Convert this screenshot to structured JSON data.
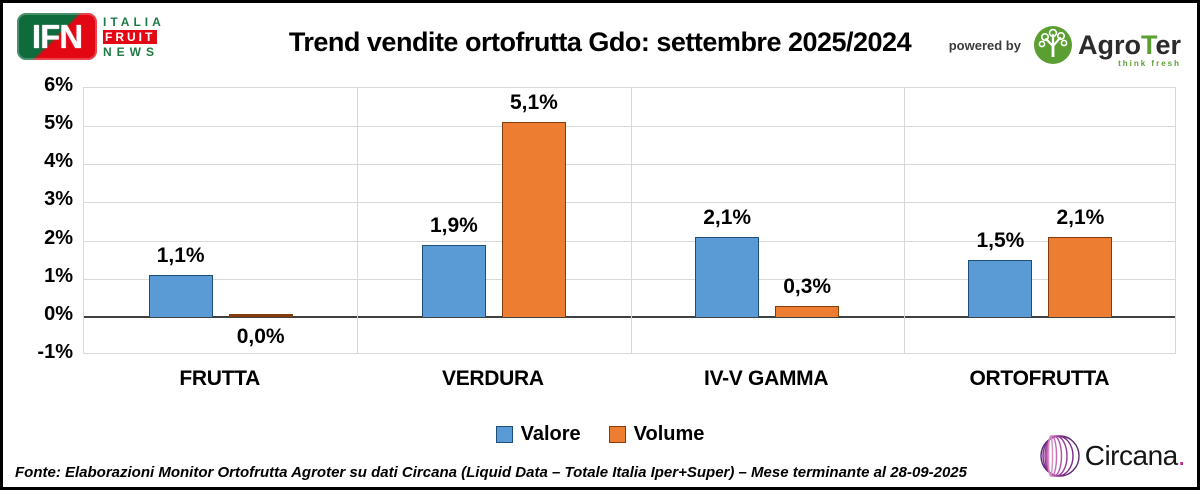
{
  "header": {
    "title": "Trend vendite ortofrutta Gdo: settembre 2025/2024",
    "ifn_logo": {
      "monogram": "IFN",
      "line1": "ITALIA",
      "line2": "FRUIT",
      "line3": "NEWS"
    },
    "powered_by": "powered by",
    "agroter": {
      "name_prefix": "Agro",
      "name_t": "T",
      "name_suffix": "er",
      "tagline": "think fresh"
    }
  },
  "chart_data": {
    "type": "bar",
    "title": "Trend vendite ortofrutta Gdo: settembre 2025/2024",
    "categories": [
      "FRUTTA",
      "VERDURA",
      "IV-V GAMMA",
      "ORTOFRUTTA"
    ],
    "series": [
      {
        "name": "Valore",
        "color": "#5B9BD5",
        "border": "#1F4E79",
        "values": [
          1.1,
          1.9,
          2.1,
          1.5
        ],
        "labels": [
          "1,1%",
          "1,9%",
          "2,1%",
          "1,5%"
        ]
      },
      {
        "name": "Volume",
        "color": "#ED7D31",
        "border": "#843C0C",
        "values": [
          0.0,
          5.1,
          0.3,
          2.1
        ],
        "labels": [
          "0,0%",
          "5,1%",
          "0,3%",
          "2,1%"
        ]
      }
    ],
    "y_ticks": [
      "6%",
      "5%",
      "4%",
      "3%",
      "2%",
      "1%",
      "0%",
      "-1%"
    ],
    "ylim": [
      -1,
      6
    ],
    "grid": true,
    "legend_position": "bottom",
    "xlabel": "",
    "ylabel": ""
  },
  "legend": [
    {
      "label": "Valore",
      "color": "#5B9BD5",
      "border": "#1F4E79"
    },
    {
      "label": "Volume",
      "color": "#ED7D31",
      "border": "#843C0C"
    }
  ],
  "footer": {
    "source": "Fonte: Elaborazioni Monitor Ortofrutta Agroter su dati Circana (Liquid Data – Totale Italia Iper+Super) – Mese terminante al 28-09-2025",
    "circana_name": "Circana",
    "circana_dot": "."
  }
}
